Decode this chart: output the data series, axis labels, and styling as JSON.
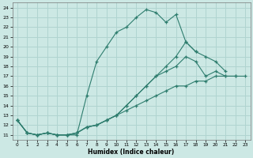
{
  "xlabel": "Humidex (Indice chaleur)",
  "background_color": "#cce8e4",
  "grid_color": "#b0d4d0",
  "line_color": "#2e7d6e",
  "xlim": [
    -0.5,
    23.5
  ],
  "ylim": [
    10.5,
    24.5
  ],
  "xticks": [
    0,
    1,
    2,
    3,
    4,
    5,
    6,
    7,
    8,
    9,
    10,
    11,
    12,
    13,
    14,
    15,
    16,
    17,
    18,
    19,
    20,
    21,
    22,
    23
  ],
  "yticks": [
    11,
    12,
    13,
    14,
    15,
    16,
    17,
    18,
    19,
    20,
    21,
    22,
    23,
    24
  ],
  "series": [
    {
      "x": [
        0,
        1,
        2,
        3,
        4,
        5,
        6,
        7,
        8,
        9,
        10,
        11,
        12,
        13,
        14,
        15,
        16,
        17,
        18
      ],
      "y": [
        12.5,
        11.2,
        11.0,
        11.2,
        11.0,
        11.0,
        11.0,
        15.0,
        18.5,
        20.0,
        21.5,
        22.0,
        23.0,
        23.8,
        23.5,
        22.5,
        23.3,
        20.5,
        19.5
      ]
    },
    {
      "x": [
        0,
        1,
        2,
        3,
        4,
        5,
        6,
        7,
        8,
        9,
        10,
        11,
        12,
        13,
        14,
        15,
        16,
        17,
        18,
        19,
        20,
        21
      ],
      "y": [
        12.5,
        11.2,
        11.0,
        11.2,
        11.0,
        11.0,
        11.2,
        11.8,
        12.0,
        12.5,
        13.0,
        14.0,
        15.0,
        16.0,
        17.0,
        18.0,
        19.0,
        20.5,
        19.5,
        19.0,
        18.5,
        17.5
      ]
    },
    {
      "x": [
        0,
        1,
        2,
        3,
        4,
        5,
        6,
        7,
        8,
        9,
        10,
        11,
        12,
        13,
        14,
        15,
        16,
        17,
        18,
        19,
        20,
        21,
        22
      ],
      "y": [
        12.5,
        11.2,
        11.0,
        11.2,
        11.0,
        11.0,
        11.2,
        11.8,
        12.0,
        12.5,
        13.0,
        14.0,
        15.0,
        16.0,
        17.0,
        17.5,
        18.0,
        19.0,
        18.5,
        17.0,
        17.5,
        17.0,
        17.0
      ]
    },
    {
      "x": [
        0,
        1,
        2,
        3,
        4,
        5,
        6,
        7,
        8,
        9,
        10,
        11,
        12,
        13,
        14,
        15,
        16,
        17,
        18,
        19,
        20,
        21,
        22,
        23
      ],
      "y": [
        12.5,
        11.2,
        11.0,
        11.2,
        11.0,
        11.0,
        11.2,
        11.8,
        12.0,
        12.5,
        13.0,
        13.5,
        14.0,
        14.5,
        15.0,
        15.5,
        16.0,
        16.0,
        16.5,
        16.5,
        17.0,
        17.0,
        17.0,
        17.0
      ]
    }
  ]
}
